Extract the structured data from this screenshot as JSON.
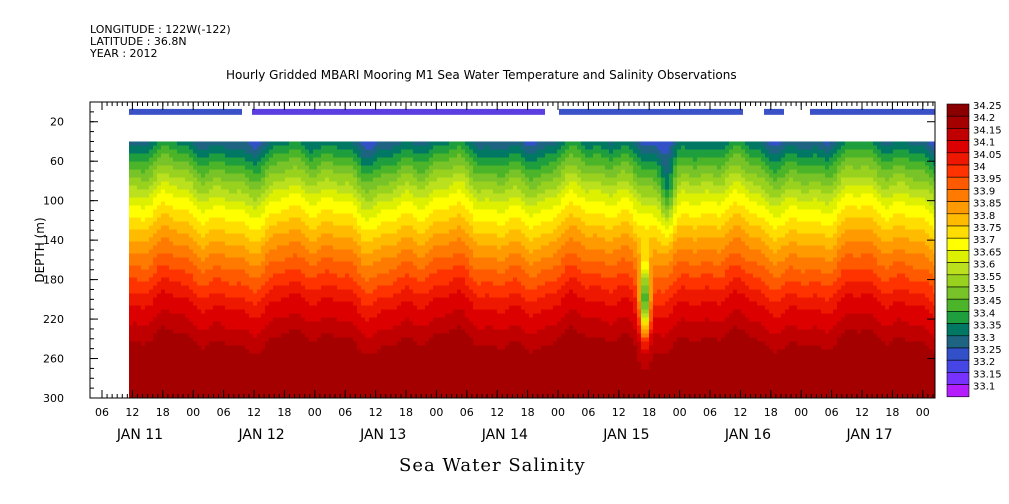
{
  "header": {
    "longitude": "LONGITUDE : 122W(-122)",
    "latitude": "LATITUDE : 36.8N",
    "year": "YEAR : 2012"
  },
  "chart_data": {
    "type": "heatmap",
    "title": "Hourly Gridded MBARI Mooring M1 Sea Water Temperature and Salinity Observations",
    "xtitle": "Sea Water Salinity",
    "ylabel": "DEPTH (m)",
    "x": {
      "hour_ticks": [
        "06",
        "12",
        "18",
        "00",
        "06",
        "12",
        "18",
        "00",
        "06",
        "12",
        "18",
        "00",
        "06",
        "12",
        "18",
        "00",
        "06",
        "12",
        "18",
        "00",
        "06",
        "12",
        "18",
        "00",
        "06",
        "12",
        "18",
        "00",
        "06",
        "12",
        "18",
        "00"
      ],
      "day_labels": [
        "JAN 11",
        "JAN 12",
        "JAN 13",
        "JAN 14",
        "JAN 15",
        "JAN 16",
        "JAN 17"
      ]
    },
    "ylim": [
      300,
      0
    ],
    "yticks": [
      20,
      60,
      100,
      140,
      180,
      220,
      260,
      300
    ],
    "colorbar": {
      "levels": [
        "34.25",
        "34.2",
        "34.15",
        "34.1",
        "34.05",
        "34",
        "33.95",
        "33.9",
        "33.85",
        "33.8",
        "33.75",
        "33.7",
        "33.65",
        "33.6",
        "33.55",
        "33.5",
        "33.45",
        "33.4",
        "33.35",
        "33.3",
        "33.25",
        "33.2",
        "33.15",
        "33.1"
      ],
      "colors": [
        "#8a0000",
        "#a50000",
        "#c00000",
        "#dc0000",
        "#ee1800",
        "#ff3300",
        "#ff5a00",
        "#ff7a00",
        "#ff9a00",
        "#ffbb00",
        "#ffdd00",
        "#ffff00",
        "#ddf000",
        "#bbe11e",
        "#99d21e",
        "#77c328",
        "#4bb428",
        "#1e9e3c",
        "#007864",
        "#1e6482",
        "#3250c8",
        "#4646e6",
        "#7832ff",
        "#b41eff"
      ]
    },
    "notes": "Salinity increases with depth: ~33.35 near 40 m, ~33.6-33.7 at 100 m, ~33.85-34.0 at 140-160 m, ~34.1 at 200 m, 34.2-34.25 at 250-300 m. Data gap between surface bin (~10 m) and ~40 m. Low-salinity intrusion near JAN 15 ~15h at 180-220 m."
  }
}
